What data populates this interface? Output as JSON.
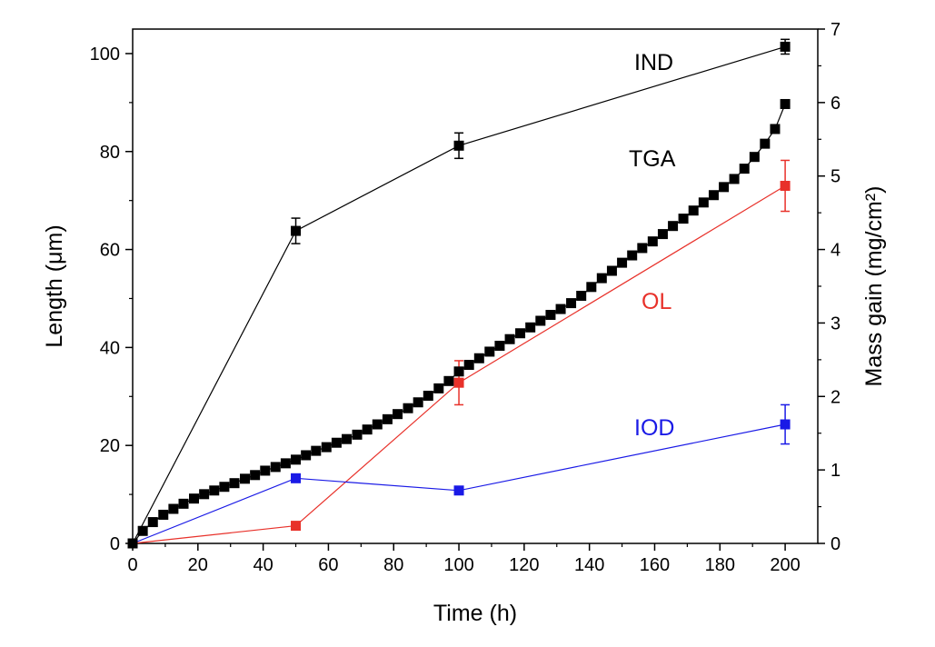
{
  "chart_data": {
    "type": "scatter",
    "title": "",
    "xlabel": "Time (h)",
    "ylabel_left": "Length (μm)",
    "ylabel_right": "Mass gain (mg/cm²)",
    "xlim": [
      0,
      210
    ],
    "ylim_left": [
      0,
      105
    ],
    "ylim_right": [
      0,
      7
    ],
    "xticks": [
      0,
      20,
      40,
      60,
      80,
      100,
      120,
      140,
      160,
      180,
      200
    ],
    "yticks_left": [
      0,
      20,
      40,
      60,
      80,
      100
    ],
    "yticks_right": [
      0,
      1,
      2,
      3,
      4,
      5,
      6,
      7
    ],
    "grid": false,
    "series": [
      {
        "name": "IND",
        "axis": "left",
        "color": "#000000",
        "marker": "square",
        "line": true,
        "x": [
          0,
          50,
          100,
          200
        ],
        "y": [
          0,
          63.8,
          81.2,
          101.4
        ],
        "yerr": [
          0,
          2.6,
          2.6,
          1.5
        ]
      },
      {
        "name": "OL",
        "axis": "left",
        "color": "#e8312a",
        "marker": "square",
        "line": true,
        "x": [
          0,
          50,
          100,
          200
        ],
        "y": [
          0,
          3.6,
          32.8,
          73.0
        ],
        "yerr": [
          0,
          0.6,
          4.5,
          5.2
        ]
      },
      {
        "name": "IOD",
        "axis": "left",
        "color": "#1a1ae6",
        "marker": "square",
        "line": true,
        "x": [
          0,
          50,
          100,
          200
        ],
        "y": [
          0,
          13.3,
          10.8,
          24.3
        ],
        "yerr": [
          0,
          0.8,
          0.6,
          4.0
        ]
      },
      {
        "name": "TGA",
        "axis": "right",
        "color": "#000000",
        "marker": "square",
        "line": true,
        "x": [
          0,
          3.1,
          6.2,
          9.4,
          12.5,
          15.6,
          18.8,
          21.9,
          25,
          28.1,
          31.2,
          34.4,
          37.5,
          40.6,
          43.8,
          46.9,
          50,
          53.1,
          56.2,
          59.4,
          62.5,
          65.6,
          68.8,
          71.9,
          75,
          78.1,
          81.2,
          84.4,
          87.5,
          90.6,
          93.8,
          96.9,
          100,
          103.1,
          106.2,
          109.4,
          112.5,
          115.6,
          118.8,
          121.9,
          125,
          128.1,
          131.2,
          134.4,
          137.5,
          140.6,
          143.8,
          146.9,
          150,
          153.1,
          156.2,
          159.4,
          162.5,
          165.6,
          168.8,
          171.9,
          175,
          178.1,
          181.2,
          184.4,
          187.5,
          190.6,
          193.8,
          196.9,
          200
        ],
        "y": [
          0,
          0.17,
          0.29,
          0.39,
          0.47,
          0.54,
          0.61,
          0.67,
          0.72,
          0.77,
          0.82,
          0.88,
          0.93,
          0.99,
          1.04,
          1.09,
          1.14,
          1.2,
          1.26,
          1.31,
          1.37,
          1.42,
          1.48,
          1.55,
          1.62,
          1.69,
          1.76,
          1.84,
          1.92,
          2.01,
          2.11,
          2.21,
          2.34,
          2.43,
          2.52,
          2.61,
          2.69,
          2.78,
          2.86,
          2.94,
          3.03,
          3.11,
          3.19,
          3.27,
          3.37,
          3.49,
          3.61,
          3.71,
          3.82,
          3.92,
          4.02,
          4.11,
          4.21,
          4.32,
          4.42,
          4.53,
          4.64,
          4.74,
          4.85,
          4.96,
          5.1,
          5.26,
          5.44,
          5.64,
          5.98
        ]
      }
    ]
  }
}
